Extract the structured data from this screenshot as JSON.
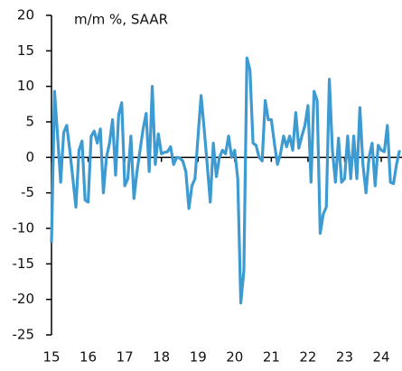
{
  "chart_data": {
    "type": "line",
    "title": "m/m %, SAAR",
    "categories": [
      "15",
      null,
      null,
      null,
      null,
      null,
      null,
      null,
      null,
      null,
      null,
      null,
      "16",
      null,
      null,
      null,
      null,
      null,
      null,
      null,
      null,
      null,
      null,
      null,
      "17",
      null,
      null,
      null,
      null,
      null,
      null,
      null,
      null,
      null,
      null,
      null,
      "18",
      null,
      null,
      null,
      null,
      null,
      null,
      null,
      null,
      null,
      null,
      null,
      "19",
      null,
      null,
      null,
      null,
      null,
      null,
      null,
      null,
      null,
      null,
      null,
      "20",
      null,
      null,
      null,
      null,
      null,
      null,
      null,
      null,
      null,
      null,
      null,
      "21",
      null,
      null,
      null,
      null,
      null,
      null,
      null,
      null,
      null,
      null,
      null,
      "22",
      null,
      null,
      null,
      null,
      null,
      null,
      null,
      null,
      null,
      null,
      null,
      "23",
      null,
      null,
      null,
      null,
      null,
      null,
      null,
      null,
      null,
      null,
      null,
      "24",
      null,
      null,
      null,
      null,
      null,
      null
    ],
    "values": [
      -12,
      9.3,
      3,
      -3.5,
      3.5,
      4.5,
      1,
      -3,
      -7,
      1,
      2.3,
      -6,
      -6.3,
      3,
      3.7,
      2,
      4,
      -5,
      0,
      2,
      5.3,
      -2.5,
      6,
      7.7,
      -4,
      -3,
      3,
      -5.8,
      -2,
      1,
      4,
      6.2,
      -2,
      10,
      -1,
      3.3,
      0.5,
      0.7,
      0.8,
      1.5,
      -1,
      0,
      -0.1,
      -0.5,
      -2,
      -7.2,
      -4,
      -3,
      3,
      8.7,
      4,
      -1,
      -6.3,
      2,
      -2.7,
      0,
      1,
      0.5,
      3,
      0,
      1,
      -3,
      -20.5,
      -16,
      14,
      12.3,
      2,
      1.7,
      0,
      -0.5,
      8,
      5.3,
      5.3,
      2,
      -1,
      0.5,
      3,
      1.5,
      3,
      1,
      6.3,
      1.3,
      3,
      4.5,
      7.3,
      -3.5,
      9.3,
      8,
      -10.7,
      -8,
      -7,
      11,
      1,
      -3.5,
      2.7,
      -3.5,
      -3,
      3,
      -3,
      3,
      -3,
      7,
      -1,
      -5,
      0,
      2,
      -4,
      1.7,
      1,
      0.8,
      4.5,
      -3.5,
      -3.7,
      -1,
      1
    ],
    "color": "#3d9bd1",
    "ylim": [
      -25,
      20
    ],
    "yticks": [
      -25,
      -20,
      -15,
      -10,
      -5,
      0,
      5,
      10,
      15,
      20
    ]
  }
}
